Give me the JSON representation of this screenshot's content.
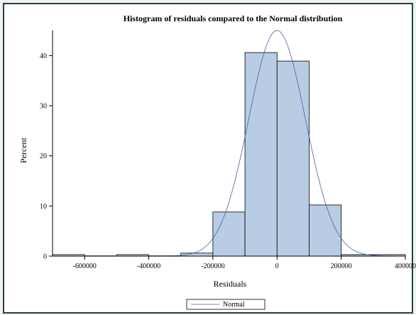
{
  "chart_data": {
    "type": "bar",
    "title": "Histogram of residuals compared to the Normal distribution",
    "xlabel": "Residuals",
    "ylabel": "Percent",
    "xlim": [
      -700000,
      400000
    ],
    "ylim": [
      0,
      45
    ],
    "x_ticks": [
      -600000,
      -400000,
      -200000,
      0,
      200000,
      400000
    ],
    "y_ticks": [
      0,
      10,
      20,
      30,
      40
    ],
    "bins": [
      {
        "x0": -700000,
        "x1": -600000,
        "value": 0.3
      },
      {
        "x0": -600000,
        "x1": -500000,
        "value": 0.05
      },
      {
        "x0": -500000,
        "x1": -400000,
        "value": 0.3
      },
      {
        "x0": -400000,
        "x1": -300000,
        "value": 0.05
      },
      {
        "x0": -300000,
        "x1": -200000,
        "value": 0.6
      },
      {
        "x0": -200000,
        "x1": -100000,
        "value": 8.8
      },
      {
        "x0": -100000,
        "x1": 0,
        "value": 40.6
      },
      {
        "x0": 0,
        "x1": 100000,
        "value": 38.9
      },
      {
        "x0": 100000,
        "x1": 200000,
        "value": 10.2
      },
      {
        "x0": 200000,
        "x1": 300000,
        "value": 0.3
      },
      {
        "x0": 300000,
        "x1": 400000,
        "value": 0.3
      }
    ],
    "normal_curve": {
      "name": "Normal",
      "mean": 0,
      "sd": 88650,
      "peak": 45,
      "color": "#4a5fa8"
    },
    "bar_fill": "#b8cce4",
    "bar_stroke": "#000000",
    "background": "#e9f6ee",
    "grid": false,
    "legend": {
      "position": "bottom-center",
      "entries": [
        "Normal"
      ]
    }
  }
}
